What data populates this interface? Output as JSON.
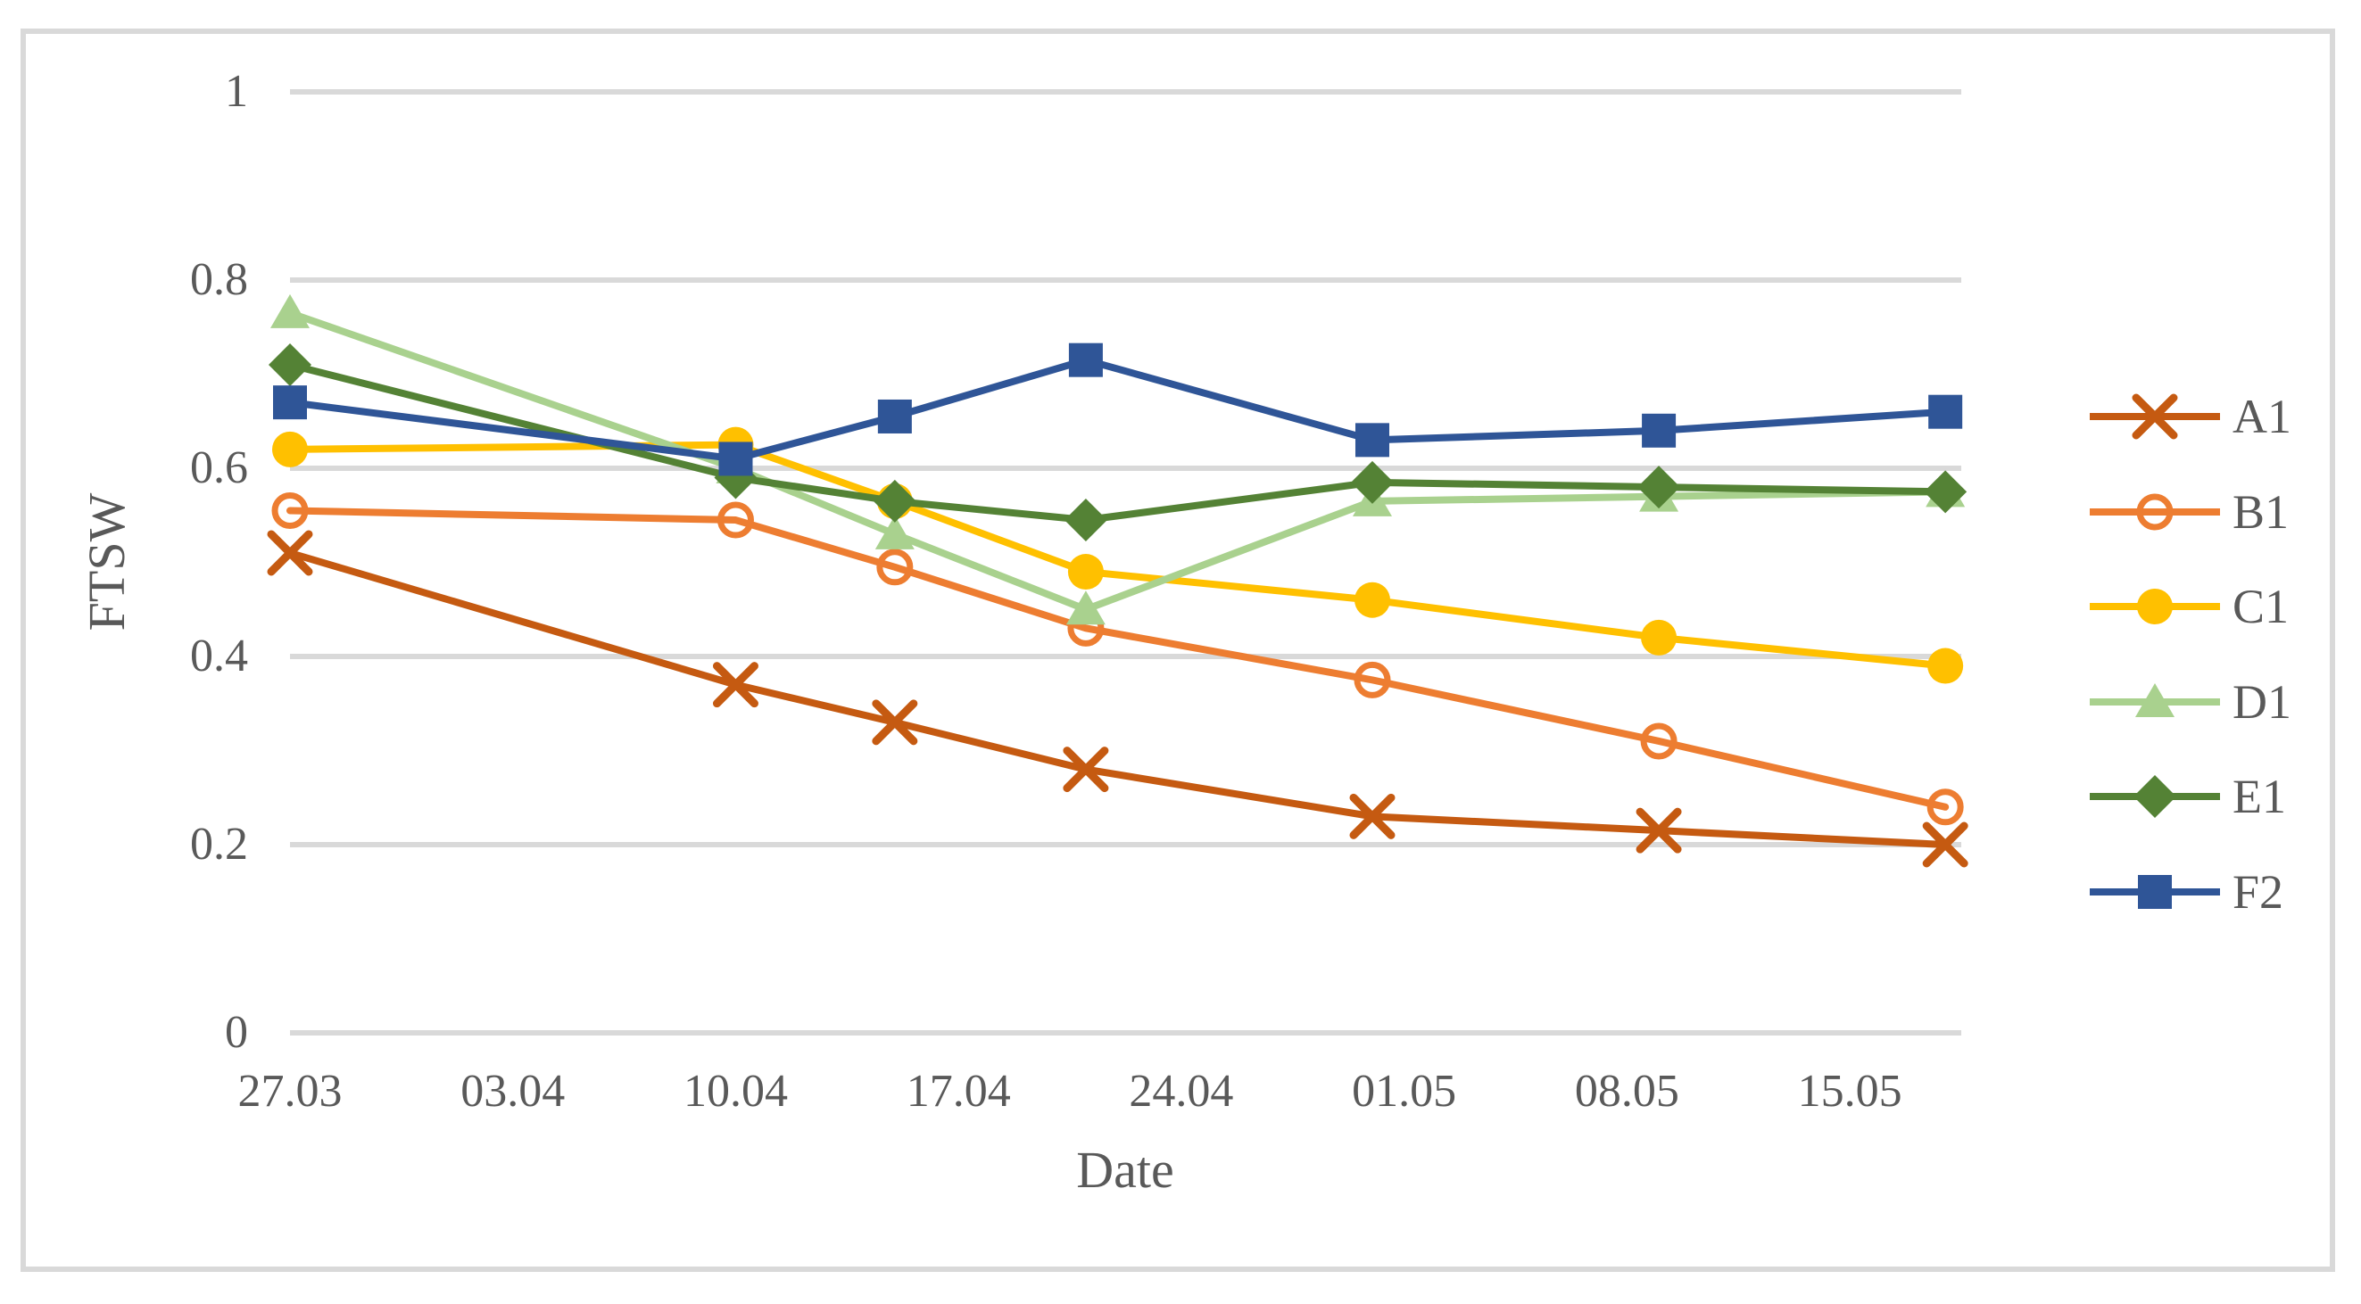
{
  "chart_data": {
    "type": "line",
    "title": "",
    "xlabel": "Date",
    "ylabel": "FTSW",
    "grid": "horizontal-only",
    "legend_position": "right-outside",
    "ylim": [
      0,
      1
    ],
    "y_ticks": [
      0,
      0.2,
      0.4,
      0.6,
      0.8,
      1
    ],
    "y_tick_labels": [
      "0",
      "0.2",
      "0.4",
      "0.6",
      "0.8",
      "1"
    ],
    "x_tick_labels": [
      "27.03",
      "03.04",
      "10.04",
      "17.04",
      "24.04",
      "01.05",
      "08.05",
      "15.05"
    ],
    "x_tick_days": [
      0,
      7,
      14,
      21,
      28,
      35,
      42,
      49
    ],
    "x_range_days": [
      0,
      52.5
    ],
    "point_dates": [
      "27.03",
      "10.04",
      "15.04",
      "21.04",
      "30.04",
      "09.05",
      "18.05"
    ],
    "point_days": [
      0,
      14,
      19,
      25,
      34,
      43,
      52
    ],
    "series": [
      {
        "name": "A1",
        "marker": "x",
        "color": "#C55A11",
        "values": [
          0.51,
          0.37,
          0.33,
          0.28,
          0.23,
          0.215,
          0.2
        ]
      },
      {
        "name": "B1",
        "marker": "open-circle",
        "color": "#ED7D31",
        "values": [
          0.555,
          0.545,
          0.495,
          0.43,
          0.375,
          0.31,
          0.24
        ]
      },
      {
        "name": "C1",
        "marker": "circle",
        "color": "#FFC000",
        "values": [
          0.62,
          0.625,
          0.565,
          0.49,
          0.46,
          0.42,
          0.39
        ]
      },
      {
        "name": "D1",
        "marker": "triangle",
        "color": "#A9D18E",
        "values": [
          0.765,
          0.6,
          0.53,
          0.45,
          0.565,
          0.57,
          0.575
        ]
      },
      {
        "name": "E1",
        "marker": "diamond",
        "color": "#548235",
        "values": [
          0.71,
          0.59,
          0.565,
          0.545,
          0.585,
          0.58,
          0.575
        ]
      },
      {
        "name": "F2",
        "marker": "square",
        "color": "#2F5597",
        "values": [
          0.67,
          0.61,
          0.655,
          0.715,
          0.63,
          0.64,
          0.66
        ]
      }
    ],
    "colors": {
      "gridline": "#d9d9d9",
      "chart_border": "#d9d9d9",
      "axis_text": "#595959",
      "background": "#ffffff"
    }
  }
}
